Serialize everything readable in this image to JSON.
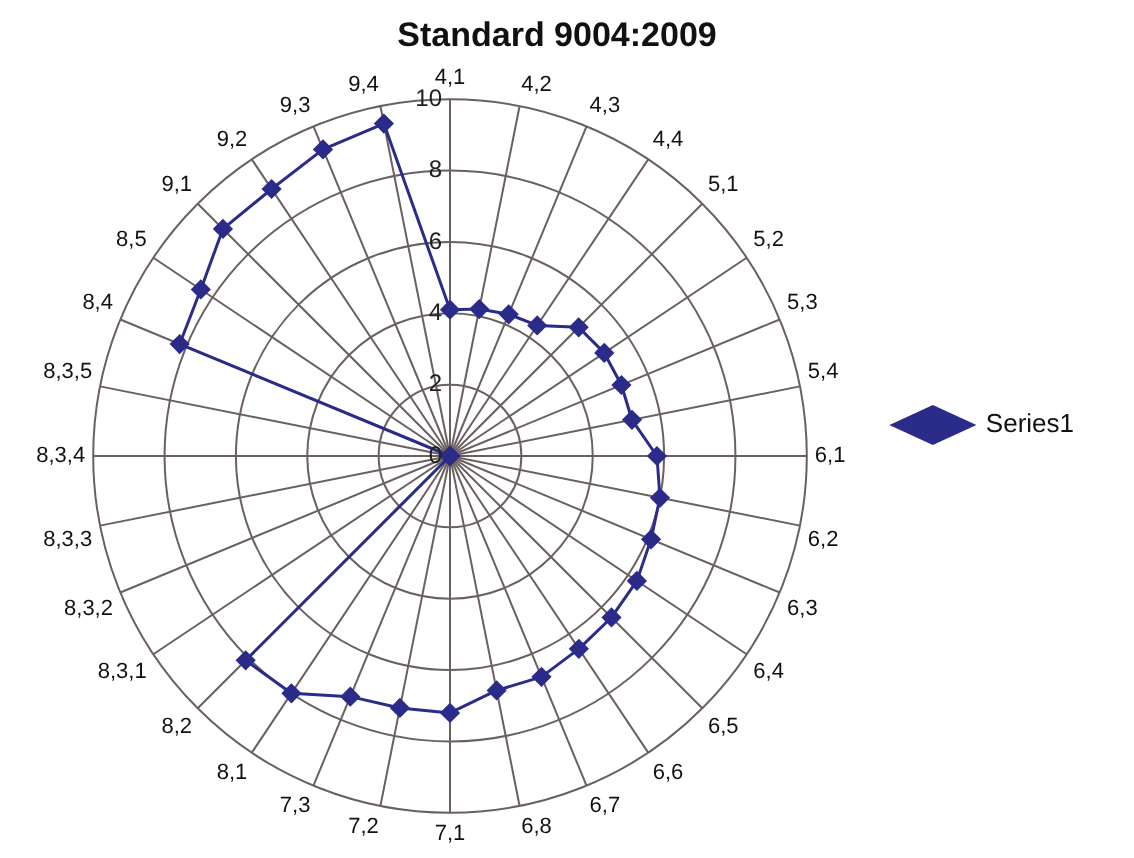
{
  "chart_data": {
    "type": "radar",
    "title": "Standard 9004:2009",
    "categories": [
      "4,1",
      "4,2",
      "4,3",
      "4,4",
      "5,1",
      "5,2",
      "5,3",
      "5,4",
      "6,1",
      "6,2",
      "6,3",
      "6,4",
      "6,5",
      "6,6",
      "6,7",
      "6,8",
      "7,1",
      "7,2",
      "7,3",
      "8,1",
      "8,2",
      "8,3,1",
      "8,3,2",
      "8,3,3",
      "8,3,4",
      "8,3,5",
      "8,4",
      "8,5",
      "9,1",
      "9,2",
      "9,3",
      "9,4"
    ],
    "series": [
      {
        "name": "Series1",
        "color": "#2b2b8a",
        "values": [
          4.1,
          4.2,
          4.3,
          4.4,
          5.1,
          5.2,
          5.2,
          5.2,
          5.8,
          6,
          6.1,
          6.3,
          6.4,
          6.5,
          6.7,
          6.7,
          7.2,
          7.2,
          7.3,
          8,
          8.1,
          0,
          0,
          0,
          0,
          0,
          8.2,
          8.4,
          9,
          9,
          9.3,
          9.5
        ]
      }
    ],
    "ylim": [
      0,
      10
    ],
    "yticks": [
      0,
      2,
      4,
      6,
      8,
      10
    ],
    "grid": true,
    "legend": "right",
    "marker": "diamond",
    "line_style": "solid"
  }
}
